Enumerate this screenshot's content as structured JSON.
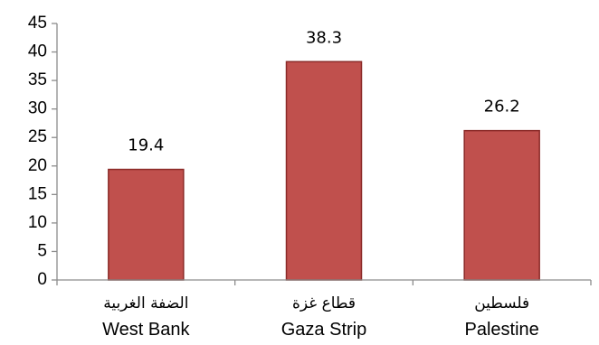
{
  "chart_data": {
    "type": "bar",
    "title": "",
    "xlabel": "",
    "ylabel": "",
    "ylim": [
      0,
      45
    ],
    "yticks": [
      0,
      5,
      10,
      15,
      20,
      25,
      30,
      35,
      40,
      45
    ],
    "grid": false,
    "legend": "none",
    "categories": [
      {
        "ar": "الضفة الغربية",
        "en": "West Bank"
      },
      {
        "ar": "قطاع غزة",
        "en": "Gaza Strip"
      },
      {
        "ar": "فلسطين",
        "en": "Palestine"
      }
    ],
    "values": [
      19.4,
      38.3,
      26.2
    ],
    "data_labels": [
      "19.4",
      "38.3",
      "26.2"
    ],
    "bar_color": "#c0504d",
    "bar_border_color": "#8b2a28"
  }
}
